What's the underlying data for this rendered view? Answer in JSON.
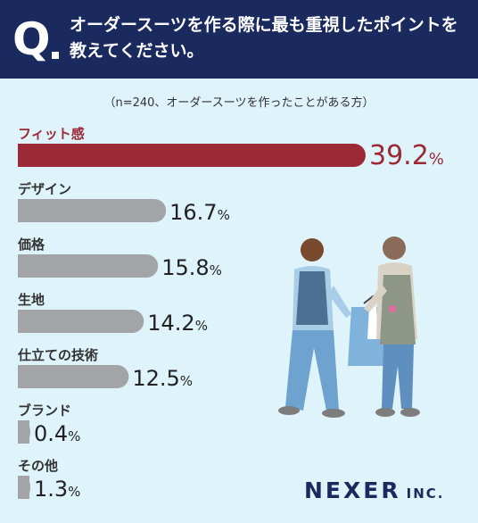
{
  "header": {
    "q_label": "Q",
    "question": "オーダースーツを作る際に最も重視したポイントを教えてください。"
  },
  "note": "（n=240、オーダースーツを作ったことがある方）",
  "logo": {
    "main": "NEXER",
    "sub": "INC."
  },
  "colors": {
    "highlight": "#9b2a36",
    "bar": "#a3a4a8",
    "header": "#1b2a5e"
  },
  "chart_data": {
    "type": "bar",
    "orientation": "horizontal",
    "categories": [
      "フィット感",
      "デザイン",
      "価格",
      "生地",
      "仕立ての技術",
      "ブランド",
      "その他"
    ],
    "values": [
      39.2,
      16.7,
      15.8,
      14.2,
      12.5,
      0.4,
      1.3
    ],
    "value_labels": [
      "39.2",
      "16.7",
      "15.8",
      "14.2",
      "12.5",
      "0.4",
      "1.3"
    ],
    "unit": "%",
    "xlim": [
      0,
      39.2
    ]
  }
}
